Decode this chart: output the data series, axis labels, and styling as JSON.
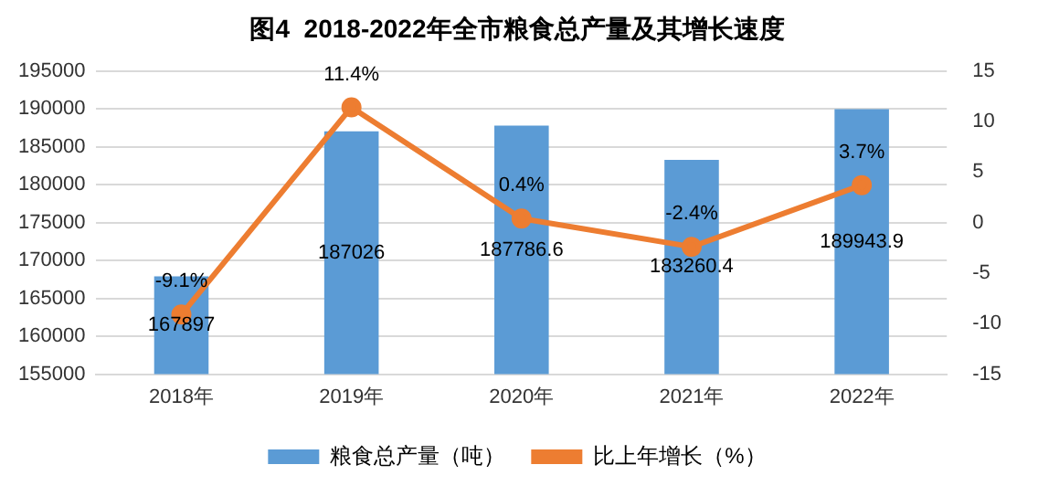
{
  "chart_data": {
    "type": "bar",
    "title": "图4  2018-2022年全市粮食总产量及其增长速度",
    "categories": [
      "2018年",
      "2019年",
      "2020年",
      "2021年",
      "2022年"
    ],
    "series": [
      {
        "name": "粮食总产量（吨）",
        "color": "#5b9bd5",
        "values": [
          167897,
          187026,
          187786.6,
          183260.4,
          189943.9
        ]
      },
      {
        "name": "比上年增长（%）",
        "type": "line",
        "axis": "y2",
        "color": "#ed7d31",
        "values": [
          -9.1,
          11.4,
          0.4,
          -2.4,
          3.7
        ],
        "value_labels": [
          "-9.1%",
          "11.4%",
          "0.4%",
          "-2.4%",
          "3.7%"
        ]
      }
    ],
    "ylim": [
      155000,
      195000
    ],
    "yticks": [
      155000,
      160000,
      165000,
      170000,
      175000,
      180000,
      185000,
      190000,
      195000
    ],
    "y2lim": [
      -15,
      15
    ],
    "y2ticks": [
      -15,
      -10,
      -5,
      0,
      5,
      10,
      15
    ],
    "data_labels": true,
    "grid": "y",
    "legend": "bottom",
    "marker": "circle",
    "line_style": "solid"
  }
}
